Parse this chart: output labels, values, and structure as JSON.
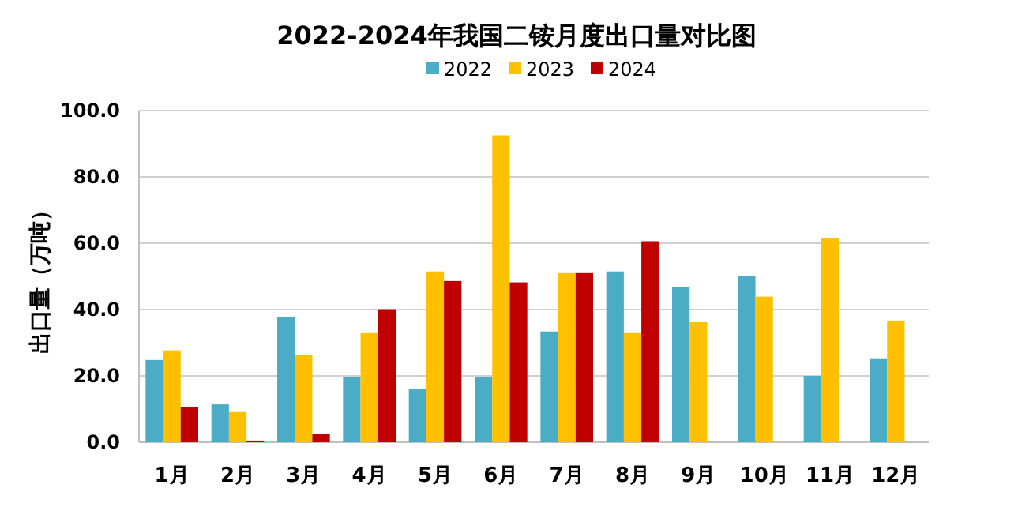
{
  "chart_data": {
    "type": "bar",
    "title": "2022-2024年我国二铵月度出口量对比图",
    "ylabel": "出口量（万吨）",
    "categories": [
      "1月",
      "2月",
      "3月",
      "4月",
      "5月",
      "6月",
      "7月",
      "8月",
      "9月",
      "10月",
      "11月",
      "12月"
    ],
    "series": [
      {
        "name": "2022",
        "color": "#4bacc6",
        "values": [
          24.8,
          11.4,
          37.7,
          19.6,
          16.2,
          19.6,
          33.4,
          51.5,
          46.7,
          50.1,
          20.0,
          25.3
        ]
      },
      {
        "name": "2023",
        "color": "#ffc000",
        "values": [
          27.7,
          9.1,
          26.2,
          32.9,
          51.5,
          92.5,
          51.0,
          32.9,
          36.2,
          43.9,
          61.5,
          36.7
        ]
      },
      {
        "name": "2024",
        "color": "#c00000",
        "values": [
          10.5,
          0.5,
          2.4,
          40.1,
          48.6,
          48.2,
          51.0,
          60.6,
          null,
          null,
          null,
          null
        ]
      }
    ],
    "ylim": [
      0,
      100
    ],
    "yticks": [
      {
        "value": 0,
        "label": "0.0"
      },
      {
        "value": 20,
        "label": "20.0"
      },
      {
        "value": 40,
        "label": "40.0"
      },
      {
        "value": 60,
        "label": "60.0"
      },
      {
        "value": 80,
        "label": "80.0"
      },
      {
        "value": 100,
        "label": "100.0"
      }
    ],
    "grid": "y",
    "legend": "top"
  }
}
